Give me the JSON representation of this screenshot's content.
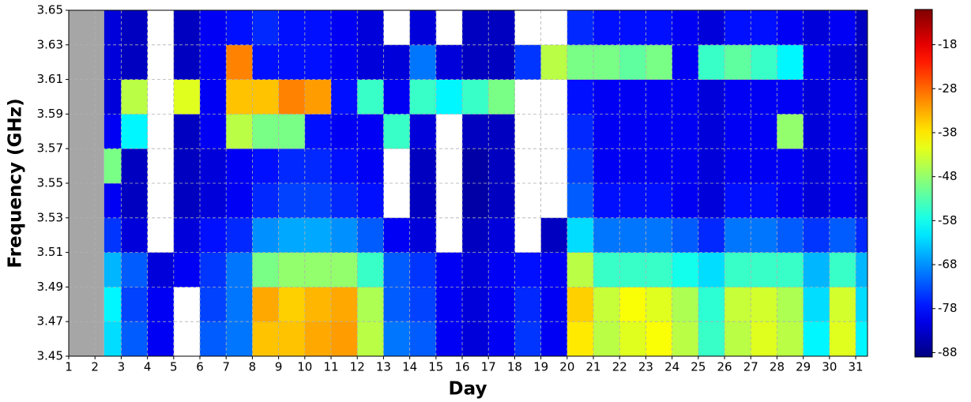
{
  "chart_data": {
    "type": "heatmap",
    "xlabel": "Day",
    "ylabel": "Frequency (GHz)",
    "xlim": [
      1,
      31.45
    ],
    "ylim": [
      3.45,
      3.65
    ],
    "xticks": [
      1,
      2,
      3,
      4,
      5,
      6,
      7,
      8,
      9,
      10,
      11,
      12,
      13,
      14,
      15,
      16,
      17,
      18,
      19,
      20,
      21,
      22,
      23,
      24,
      25,
      26,
      27,
      28,
      29,
      30,
      31
    ],
    "yticks": [
      3.45,
      3.47,
      3.49,
      3.51,
      3.53,
      3.55,
      3.57,
      3.59,
      3.61,
      3.63,
      3.65
    ],
    "x_bins": [
      1,
      2.35,
      3,
      4,
      5,
      6,
      7,
      8,
      9,
      10,
      11,
      12,
      13,
      14,
      15,
      16,
      17,
      18,
      19,
      20,
      21,
      22,
      23,
      24,
      25,
      26,
      27,
      28,
      29,
      30,
      31,
      31.45
    ],
    "no_data_span": [
      1,
      2.35
    ],
    "no_data_color": "#a6a6a6",
    "grid": true,
    "colormap": "jet",
    "clim": [
      -89,
      -10
    ],
    "cticks": [
      -18,
      -28,
      -38,
      -48,
      -58,
      -68,
      -78,
      -88
    ],
    "z": [
      [
        null,
        -62,
        -72,
        -80,
        null,
        -72,
        -70,
        -35,
        -35,
        -33,
        -32,
        -45,
        -70,
        -72,
        -80,
        -82,
        -80,
        -75,
        -80,
        -38,
        -45,
        -42,
        -40,
        -45,
        -55,
        -45,
        -42,
        -45,
        -60,
        -42,
        -60
      ],
      [
        null,
        -60,
        -74,
        -80,
        null,
        -74,
        -70,
        -33,
        -36,
        -34,
        -33,
        -46,
        -72,
        -74,
        -80,
        -82,
        -80,
        -76,
        -80,
        -36,
        -44,
        -40,
        -42,
        -46,
        -56,
        -44,
        -43,
        -46,
        -62,
        -43,
        -62
      ],
      [
        null,
        -65,
        -72,
        -82,
        -80,
        -75,
        -70,
        -50,
        -48,
        -48,
        -48,
        -55,
        -72,
        -75,
        -80,
        -82,
        -80,
        -78,
        -80,
        -45,
        -55,
        -55,
        -55,
        -58,
        -62,
        -55,
        -55,
        -55,
        -65,
        -55,
        -65
      ],
      [
        null,
        -75,
        -82,
        null,
        -82,
        -78,
        -76,
        -68,
        -66,
        -66,
        -68,
        -72,
        -80,
        -82,
        null,
        -84,
        -82,
        null,
        -84,
        -62,
        -70,
        -70,
        -70,
        -72,
        -76,
        -70,
        -70,
        -72,
        -75,
        -72,
        -76
      ],
      [
        null,
        -80,
        -84,
        null,
        -84,
        -82,
        -80,
        -76,
        -74,
        -74,
        -76,
        -78,
        null,
        -84,
        null,
        -86,
        -84,
        null,
        null,
        -72,
        -78,
        -78,
        -78,
        -80,
        -82,
        -78,
        -78,
        -80,
        -82,
        -80,
        -82
      ],
      [
        null,
        -50,
        -84,
        null,
        -84,
        -82,
        -80,
        -78,
        -76,
        -76,
        -78,
        -80,
        null,
        -84,
        null,
        -86,
        -84,
        null,
        null,
        -74,
        -80,
        -80,
        -80,
        -80,
        -82,
        -80,
        -80,
        -80,
        -82,
        -80,
        -82
      ],
      [
        null,
        -80,
        -60,
        null,
        -84,
        -80,
        -45,
        -50,
        -50,
        -78,
        -80,
        -80,
        -55,
        -82,
        null,
        -84,
        -84,
        null,
        null,
        -76,
        -80,
        -80,
        -80,
        -80,
        -82,
        -80,
        -80,
        -48,
        -82,
        -80,
        -82
      ],
      [
        null,
        -82,
        -45,
        null,
        -42,
        -80,
        -35,
        -35,
        -30,
        -32,
        -78,
        -55,
        -80,
        -55,
        -60,
        -55,
        -50,
        null,
        null,
        -78,
        -80,
        -80,
        -80,
        -80,
        -82,
        -80,
        -80,
        -80,
        -82,
        -80,
        -82
      ],
      [
        null,
        -82,
        -84,
        null,
        -84,
        -80,
        -30,
        -78,
        -78,
        -78,
        -80,
        -82,
        -82,
        -70,
        -82,
        -84,
        -84,
        -75,
        -45,
        -50,
        -50,
        -52,
        -50,
        -80,
        -55,
        -52,
        -55,
        -60,
        -80,
        -82,
        -84
      ],
      [
        null,
        -82,
        -84,
        null,
        -84,
        -80,
        -78,
        -76,
        -78,
        -78,
        -80,
        -82,
        null,
        -82,
        null,
        -84,
        -84,
        null,
        null,
        -76,
        -78,
        -78,
        -78,
        -80,
        -82,
        -78,
        -78,
        -80,
        -82,
        -80,
        -84
      ]
    ]
  }
}
